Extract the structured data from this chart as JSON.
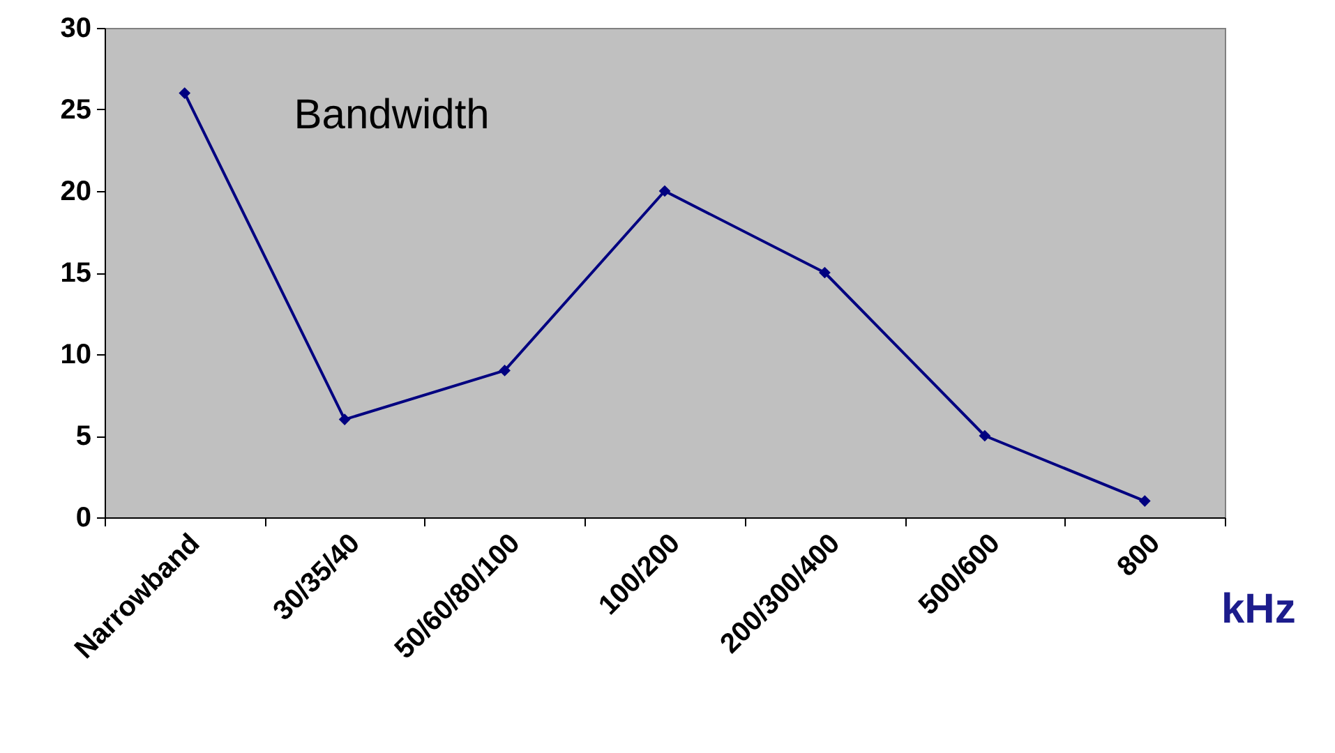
{
  "chart_data": {
    "type": "line",
    "title": "Bandwidth",
    "xlabel": "kHz",
    "categories": [
      "Narrowband",
      "30/35/40",
      "50/60/80/100",
      "100/200",
      "200/300/400",
      "500/600",
      "800"
    ],
    "series": [
      {
        "color": "#000080",
        "values": [
          26,
          6,
          9,
          20,
          15,
          5,
          1
        ]
      }
    ],
    "ylim": [
      0,
      30
    ],
    "yticks": [
      0,
      5,
      10,
      15,
      20,
      25,
      30
    ],
    "grid": false,
    "legend": false,
    "marker": "diamond",
    "line_style": "solid"
  }
}
